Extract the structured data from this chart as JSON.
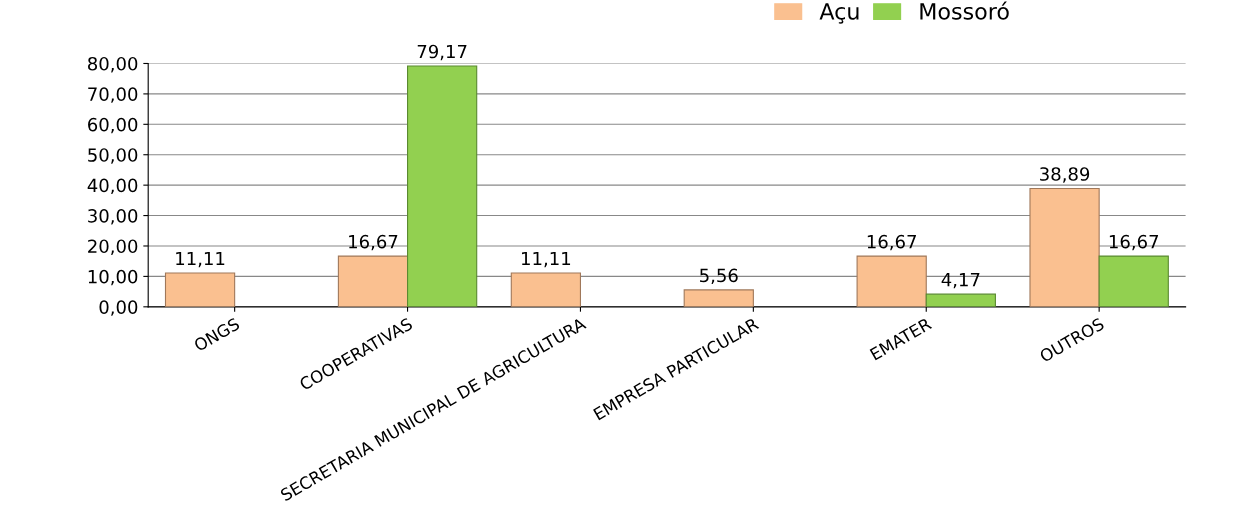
{
  "chart_data": {
    "type": "bar",
    "categories": [
      "ONGS",
      "COOPERATIVAS",
      "SECRETARIA MUNICIPAL DE AGRICULTURA",
      "EMPRESA PARTICULAR",
      "EMATER",
      "OUTROS"
    ],
    "series": [
      {
        "name": "Açu",
        "color": "#fac090",
        "values": [
          11.11,
          16.67,
          11.11,
          5.56,
          16.67,
          38.89
        ],
        "value_labels": [
          "11,11",
          "16,67",
          "11,11",
          "5,56",
          "16,67",
          "38,89"
        ]
      },
      {
        "name": "Mossoró",
        "color": "#92d050",
        "values": [
          null,
          79.17,
          null,
          null,
          4.17,
          16.67
        ],
        "value_labels": [
          null,
          "79,17",
          null,
          null,
          "4,17",
          "16,67"
        ]
      }
    ],
    "ylim": [
      0,
      80
    ],
    "yticks": [
      {
        "value": 0,
        "label": "0,00"
      },
      {
        "value": 10,
        "label": "10,00"
      },
      {
        "value": 20,
        "label": "20,00"
      },
      {
        "value": 30,
        "label": "30,00"
      },
      {
        "value": 40,
        "label": "40,00"
      },
      {
        "value": 50,
        "label": "50,00"
      },
      {
        "value": 60,
        "label": "60,00"
      },
      {
        "value": 70,
        "label": "70,00"
      },
      {
        "value": 80,
        "label": "80,00"
      }
    ],
    "grid": "y",
    "legend": "top right"
  }
}
